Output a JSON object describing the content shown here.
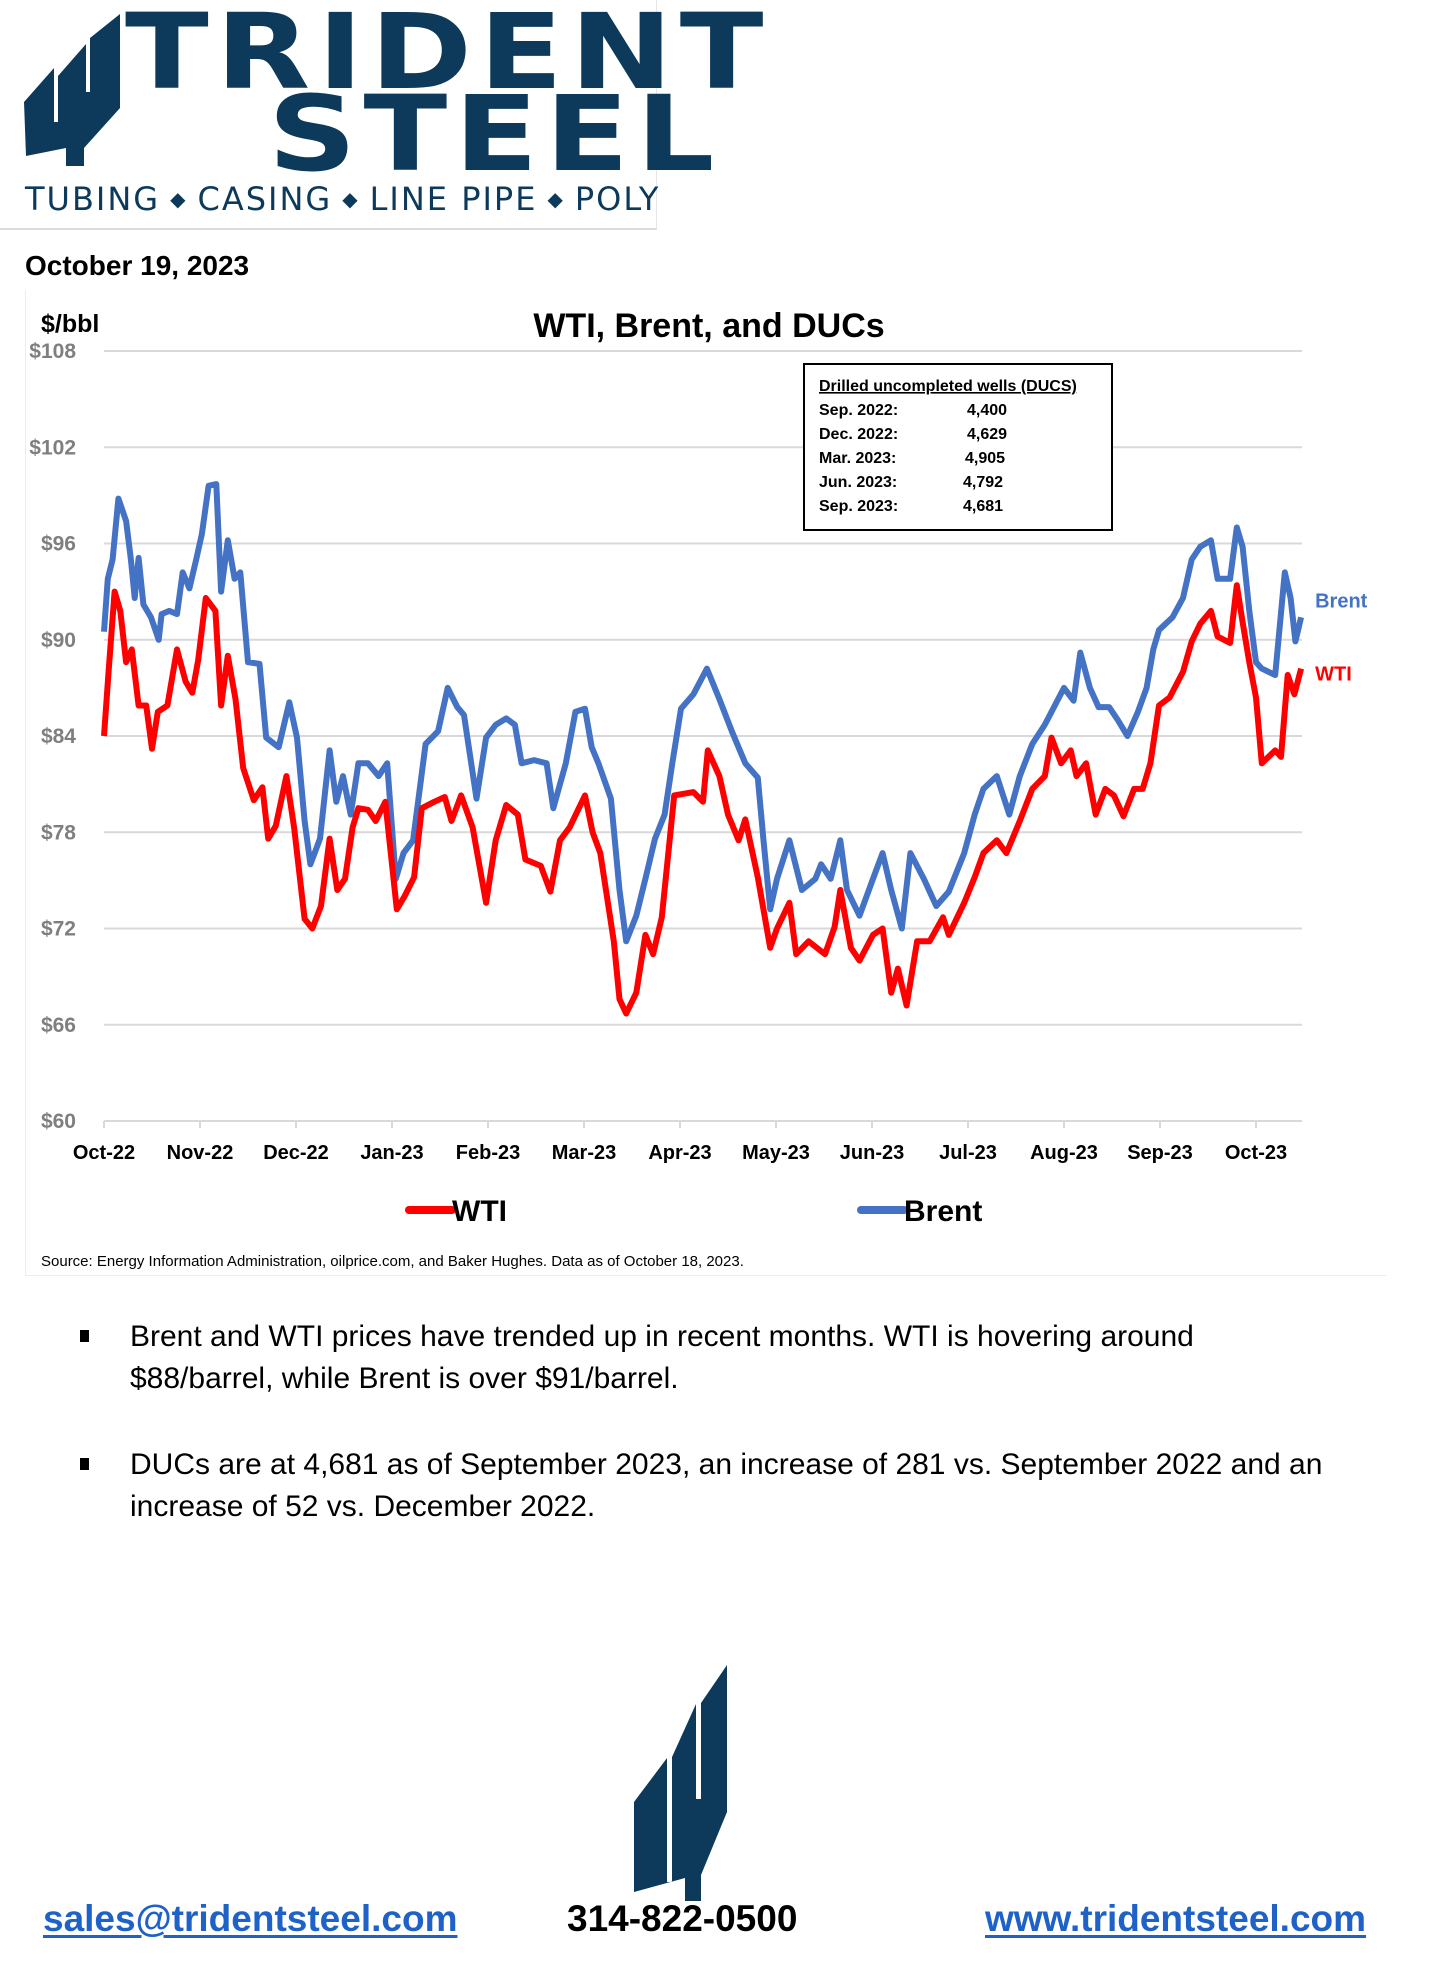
{
  "brand": {
    "name_line1": "TRIDENT",
    "name_line2": "STEEL",
    "tagline": [
      "TUBING",
      "CASING",
      "LINE PIPE",
      "POLY"
    ],
    "tagline_separator": "◆",
    "color": "#0d3a5a"
  },
  "report_date": "October 19, 2023",
  "chart_data": {
    "type": "line",
    "title": "WTI, Brent, and DUCs",
    "ylabel": "$/bbl",
    "xlabel": "",
    "ylim": [
      60,
      108
    ],
    "yticks": [
      60,
      66,
      72,
      78,
      84,
      90,
      96,
      102,
      108
    ],
    "ytick_labels": [
      "$60",
      "$66",
      "$72",
      "$78",
      "$84",
      "$90",
      "$96",
      "$102",
      "$108"
    ],
    "xticks": [
      "Oct-22",
      "Nov-22",
      "Dec-22",
      "Jan-23",
      "Feb-23",
      "Mar-23",
      "Apr-23",
      "May-23",
      "Jun-23",
      "Jul-23",
      "Aug-23",
      "Sep-23",
      "Oct-23"
    ],
    "x_unit": "months since Oct-22",
    "xlim": [
      0,
      12.47
    ],
    "grid": true,
    "legend": "bottom",
    "legend_entries": [
      "WTI",
      "Brent"
    ],
    "series": [
      {
        "name": "WTI",
        "color": "#ff0000",
        "end_label": "WTI",
        "points": [
          [
            0,
            84
          ],
          [
            0.05,
            88.2
          ],
          [
            0.11,
            93
          ],
          [
            0.17,
            91.8
          ],
          [
            0.23,
            88.6
          ],
          [
            0.29,
            89.4
          ],
          [
            0.36,
            85.9
          ],
          [
            0.44,
            85.9
          ],
          [
            0.5,
            83.2
          ],
          [
            0.56,
            85.5
          ],
          [
            0.66,
            85.9
          ],
          [
            0.76,
            89.4
          ],
          [
            0.85,
            87.4
          ],
          [
            0.92,
            86.7
          ],
          [
            0.98,
            88.7
          ],
          [
            1.06,
            92.6
          ],
          [
            1.16,
            91.8
          ],
          [
            1.22,
            85.9
          ],
          [
            1.29,
            89
          ],
          [
            1.37,
            86.3
          ],
          [
            1.45,
            82
          ],
          [
            1.56,
            80
          ],
          [
            1.65,
            80.8
          ],
          [
            1.71,
            77.6
          ],
          [
            1.79,
            78.4
          ],
          [
            1.9,
            81.5
          ],
          [
            1.98,
            78.3
          ],
          [
            2.09,
            72.6
          ],
          [
            2.17,
            72
          ],
          [
            2.26,
            73.4
          ],
          [
            2.35,
            77.6
          ],
          [
            2.43,
            74.4
          ],
          [
            2.51,
            75.1
          ],
          [
            2.59,
            78.3
          ],
          [
            2.65,
            79.5
          ],
          [
            2.75,
            79.4
          ],
          [
            2.83,
            78.7
          ],
          [
            2.93,
            79.9
          ],
          [
            3.05,
            73.2
          ],
          [
            3.13,
            74
          ],
          [
            3.23,
            75.2
          ],
          [
            3.31,
            79.5
          ],
          [
            3.44,
            79.9
          ],
          [
            3.55,
            80.2
          ],
          [
            3.62,
            78.7
          ],
          [
            3.72,
            80.3
          ],
          [
            3.84,
            78.3
          ],
          [
            3.98,
            73.6
          ],
          [
            4.08,
            77.5
          ],
          [
            4.19,
            79.7
          ],
          [
            4.31,
            79.1
          ],
          [
            4.39,
            76.3
          ],
          [
            4.55,
            75.9
          ],
          [
            4.65,
            74.3
          ],
          [
            4.75,
            77.5
          ],
          [
            4.85,
            78.3
          ],
          [
            5.01,
            80.3
          ],
          [
            5.09,
            78
          ],
          [
            5.17,
            76.7
          ],
          [
            5.31,
            71.2
          ],
          [
            5.37,
            67.6
          ],
          [
            5.44,
            66.7
          ],
          [
            5.545,
            68
          ],
          [
            5.64,
            71.6
          ],
          [
            5.72,
            70.4
          ],
          [
            5.81,
            72.7
          ],
          [
            5.94,
            80.3
          ],
          [
            6.14,
            80.5
          ],
          [
            6.24,
            79.9
          ],
          [
            6.29,
            83.1
          ],
          [
            6.41,
            81.5
          ],
          [
            6.5,
            79.1
          ],
          [
            6.61,
            77.5
          ],
          [
            6.68,
            78.8
          ],
          [
            6.81,
            75.2
          ],
          [
            6.94,
            70.8
          ],
          [
            7.01,
            72
          ],
          [
            7.14,
            73.6
          ],
          [
            7.21,
            70.4
          ],
          [
            7.34,
            71.2
          ],
          [
            7.51,
            70.4
          ],
          [
            7.61,
            72.1
          ],
          [
            7.67,
            74.4
          ],
          [
            7.78,
            70.8
          ],
          [
            7.87,
            70
          ],
          [
            8.01,
            71.6
          ],
          [
            8.11,
            72
          ],
          [
            8.2,
            68
          ],
          [
            8.27,
            69.5
          ],
          [
            8.36,
            67.2
          ],
          [
            8.47,
            71.2
          ],
          [
            8.6,
            71.2
          ],
          [
            8.74,
            72.7
          ],
          [
            8.8,
            71.6
          ],
          [
            8.96,
            73.6
          ],
          [
            9.07,
            75.2
          ],
          [
            9.16,
            76.7
          ],
          [
            9.3,
            77.5
          ],
          [
            9.4,
            76.7
          ],
          [
            9.54,
            78.7
          ],
          [
            9.67,
            80.7
          ],
          [
            9.8,
            81.5
          ],
          [
            9.87,
            83.9
          ],
          [
            9.97,
            82.3
          ],
          [
            10.07,
            83.1
          ],
          [
            10.13,
            81.5
          ],
          [
            10.23,
            82.3
          ],
          [
            10.33,
            79.1
          ],
          [
            10.43,
            80.7
          ],
          [
            10.52,
            80.3
          ],
          [
            10.62,
            79
          ],
          [
            10.73,
            80.7
          ],
          [
            10.82,
            80.7
          ],
          [
            10.9,
            82.3
          ],
          [
            10.99,
            85.9
          ],
          [
            11.1,
            86.4
          ],
          [
            11.24,
            88
          ],
          [
            11.33,
            89.9
          ],
          [
            11.42,
            91
          ],
          [
            11.53,
            91.8
          ],
          [
            11.6,
            90.2
          ],
          [
            11.73,
            89.8
          ],
          [
            11.8,
            93.4
          ],
          [
            11.86,
            91.1
          ],
          [
            11.93,
            88.6
          ],
          [
            12,
            86.4
          ],
          [
            12.06,
            82.3
          ],
          [
            12.2,
            83.1
          ],
          [
            12.26,
            82.7
          ],
          [
            12.33,
            87.8
          ],
          [
            12.4,
            86.6
          ],
          [
            12.47,
            88.2
          ]
        ]
      },
      {
        "name": "Brent",
        "color": "#4472c4",
        "end_label": "Brent",
        "points": [
          [
            0,
            90.5
          ],
          [
            0.04,
            93.8
          ],
          [
            0.09,
            95
          ],
          [
            0.15,
            98.8
          ],
          [
            0.23,
            97.4
          ],
          [
            0.28,
            95
          ],
          [
            0.32,
            92.6
          ],
          [
            0.36,
            95.1
          ],
          [
            0.41,
            92.2
          ],
          [
            0.49,
            91.4
          ],
          [
            0.57,
            90
          ],
          [
            0.6,
            91.6
          ],
          [
            0.68,
            91.8
          ],
          [
            0.76,
            91.6
          ],
          [
            0.82,
            94.2
          ],
          [
            0.89,
            93.2
          ],
          [
            0.96,
            95
          ],
          [
            1.02,
            96.6
          ],
          [
            1.09,
            99.6
          ],
          [
            1.17,
            99.7
          ],
          [
            1.22,
            93
          ],
          [
            1.29,
            96.2
          ],
          [
            1.36,
            93.8
          ],
          [
            1.42,
            94.2
          ],
          [
            1.5,
            88.6
          ],
          [
            1.62,
            88.5
          ],
          [
            1.69,
            83.9
          ],
          [
            1.82,
            83.3
          ],
          [
            1.93,
            86.1
          ],
          [
            2.01,
            83.9
          ],
          [
            2.09,
            78.7
          ],
          [
            2.15,
            76
          ],
          [
            2.25,
            77.6
          ],
          [
            2.35,
            83.1
          ],
          [
            2.42,
            79.9
          ],
          [
            2.49,
            81.5
          ],
          [
            2.57,
            79.1
          ],
          [
            2.65,
            82.3
          ],
          [
            2.75,
            82.3
          ],
          [
            2.86,
            81.5
          ],
          [
            2.95,
            82.3
          ],
          [
            3.04,
            75.1
          ],
          [
            3.12,
            76.7
          ],
          [
            3.22,
            77.5
          ],
          [
            3.35,
            83.5
          ],
          [
            3.48,
            84.3
          ],
          [
            3.58,
            87
          ],
          [
            3.68,
            85.8
          ],
          [
            3.75,
            85.3
          ],
          [
            3.88,
            80.1
          ],
          [
            3.98,
            83.9
          ],
          [
            4.08,
            84.7
          ],
          [
            4.19,
            85.1
          ],
          [
            4.28,
            84.7
          ],
          [
            4.35,
            82.3
          ],
          [
            4.48,
            82.5
          ],
          [
            4.61,
            82.3
          ],
          [
            4.68,
            79.5
          ],
          [
            4.81,
            82.3
          ],
          [
            4.91,
            85.5
          ],
          [
            5.01,
            85.7
          ],
          [
            5.08,
            83.3
          ],
          [
            5.15,
            82.3
          ],
          [
            5.28,
            80.1
          ],
          [
            5.37,
            74.4
          ],
          [
            5.44,
            71.2
          ],
          [
            5.545,
            72.8
          ],
          [
            5.64,
            75.1
          ],
          [
            5.74,
            77.6
          ],
          [
            5.84,
            79.1
          ],
          [
            5.92,
            82.3
          ],
          [
            6.01,
            85.7
          ],
          [
            6.14,
            86.6
          ],
          [
            6.28,
            88.2
          ],
          [
            6.41,
            86.3
          ],
          [
            6.54,
            84.3
          ],
          [
            6.68,
            82.3
          ],
          [
            6.81,
            81.4
          ],
          [
            6.87,
            77.5
          ],
          [
            6.94,
            73.2
          ],
          [
            7.01,
            75.1
          ],
          [
            7.14,
            77.5
          ],
          [
            7.27,
            74.4
          ],
          [
            7.41,
            75.1
          ],
          [
            7.47,
            76
          ],
          [
            7.57,
            75.1
          ],
          [
            7.67,
            77.5
          ],
          [
            7.74,
            74.4
          ],
          [
            7.87,
            72.8
          ],
          [
            8.01,
            75.1
          ],
          [
            8.11,
            76.7
          ],
          [
            8.2,
            74.4
          ],
          [
            8.31,
            72
          ],
          [
            8.4,
            76.7
          ],
          [
            8.54,
            75.1
          ],
          [
            8.67,
            73.4
          ],
          [
            8.8,
            74.3
          ],
          [
            8.96,
            76.7
          ],
          [
            9.07,
            79.1
          ],
          [
            9.16,
            80.7
          ],
          [
            9.3,
            81.5
          ],
          [
            9.43,
            79.1
          ],
          [
            9.54,
            81.5
          ],
          [
            9.67,
            83.5
          ],
          [
            9.8,
            84.7
          ],
          [
            9.87,
            85.5
          ],
          [
            10,
            87
          ],
          [
            10.1,
            86.2
          ],
          [
            10.17,
            89.2
          ],
          [
            10.27,
            87
          ],
          [
            10.36,
            85.8
          ],
          [
            10.47,
            85.8
          ],
          [
            10.56,
            85
          ],
          [
            10.66,
            84
          ],
          [
            10.77,
            85.5
          ],
          [
            10.86,
            87
          ],
          [
            10.93,
            89.4
          ],
          [
            10.99,
            90.6
          ],
          [
            11.13,
            91.4
          ],
          [
            11.24,
            92.6
          ],
          [
            11.33,
            95
          ],
          [
            11.42,
            95.8
          ],
          [
            11.53,
            96.2
          ],
          [
            11.6,
            93.8
          ],
          [
            11.73,
            93.8
          ],
          [
            11.8,
            97
          ],
          [
            11.86,
            95.8
          ],
          [
            11.93,
            91.8
          ],
          [
            12,
            88.6
          ],
          [
            12.06,
            88.2
          ],
          [
            12.2,
            87.8
          ],
          [
            12.3,
            94.2
          ],
          [
            12.36,
            92.6
          ],
          [
            12.41,
            89.9
          ],
          [
            12.47,
            91.4
          ]
        ]
      }
    ],
    "annotation_box": {
      "title": "Drilled uncompleted wells (DUCS)",
      "rows": [
        {
          "label": "Sep. 2022:",
          "value": "4,400"
        },
        {
          "label": "Dec. 2022:",
          "value": "4,629"
        },
        {
          "label": "Mar. 2023:",
          "value": "4,905"
        },
        {
          "label": "Jun. 2023:",
          "value": "4,792"
        },
        {
          "label": "Sep. 2023:",
          "value": "4,681"
        }
      ]
    },
    "source": "Source: Energy Information Administration, oilprice.com, and Baker Hughes.  Data as of October 18, 2023."
  },
  "bullets": [
    {
      "lines": [
        "Brent and WTI prices have trended up in recent months.  WTI is hovering around",
        "$88/barrel, while Brent is over $91/barrel."
      ]
    },
    {
      "lines": [
        "DUCs are at 4,681 as of September 2023, an increase of 281 vs. September 2022 and an",
        "increase of 52 vs. December 2022."
      ]
    }
  ],
  "footer": {
    "email": "sales@tridentsteel.com",
    "phone": "314-822-0500",
    "website": "www.tridentsteel.com",
    "link_color": "#1f62c7"
  }
}
